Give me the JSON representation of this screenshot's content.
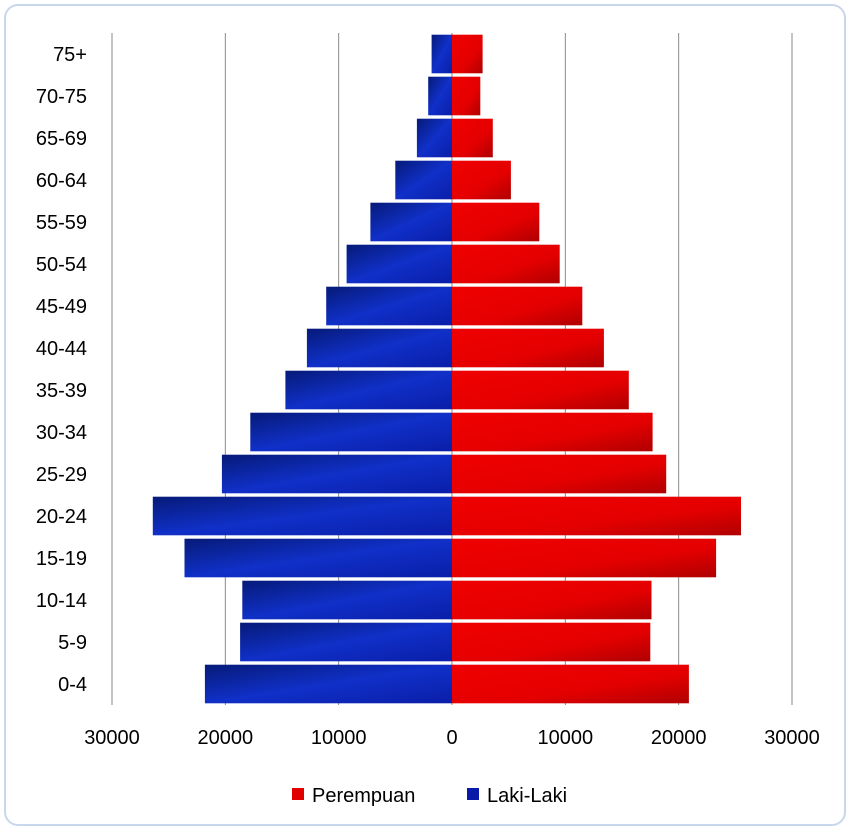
{
  "chart_data": {
    "type": "bar",
    "orientation": "horizontal",
    "layout": "population-pyramid",
    "categories": [
      "75+",
      "70-75",
      "65-69",
      "60-64",
      "55-59",
      "50-54",
      "45-49",
      "40-44",
      "35-39",
      "30-34",
      "25-29",
      "20-24",
      "15-19",
      "10-14",
      "5-9",
      "0-4"
    ],
    "series": [
      {
        "name": "Perempuan",
        "side": "right",
        "color": "#e00000",
        "values": [
          2700,
          2500,
          3600,
          5200,
          7700,
          9500,
          11500,
          13400,
          15600,
          17700,
          18900,
          25500,
          23300,
          17600,
          17500,
          20900
        ]
      },
      {
        "name": "Laki-Laki",
        "side": "left",
        "color": "#0a1aa8",
        "values": [
          1800,
          2100,
          3100,
          5000,
          7200,
          9300,
          11100,
          12800,
          14700,
          17800,
          20300,
          26400,
          23600,
          18500,
          18700,
          21800
        ]
      }
    ],
    "xlim": [
      -30000,
      30000
    ],
    "xticks": [
      "30000",
      "20000",
      "10000",
      "0",
      "10000",
      "20000",
      "30000"
    ],
    "xtick_values": [
      -30000,
      -20000,
      -10000,
      0,
      10000,
      20000,
      30000
    ],
    "grid": "vertical",
    "legend": {
      "position": "bottom",
      "entries": [
        "Perempuan",
        "Laki-Laki"
      ]
    },
    "title": "",
    "xlabel": "",
    "ylabel": ""
  }
}
